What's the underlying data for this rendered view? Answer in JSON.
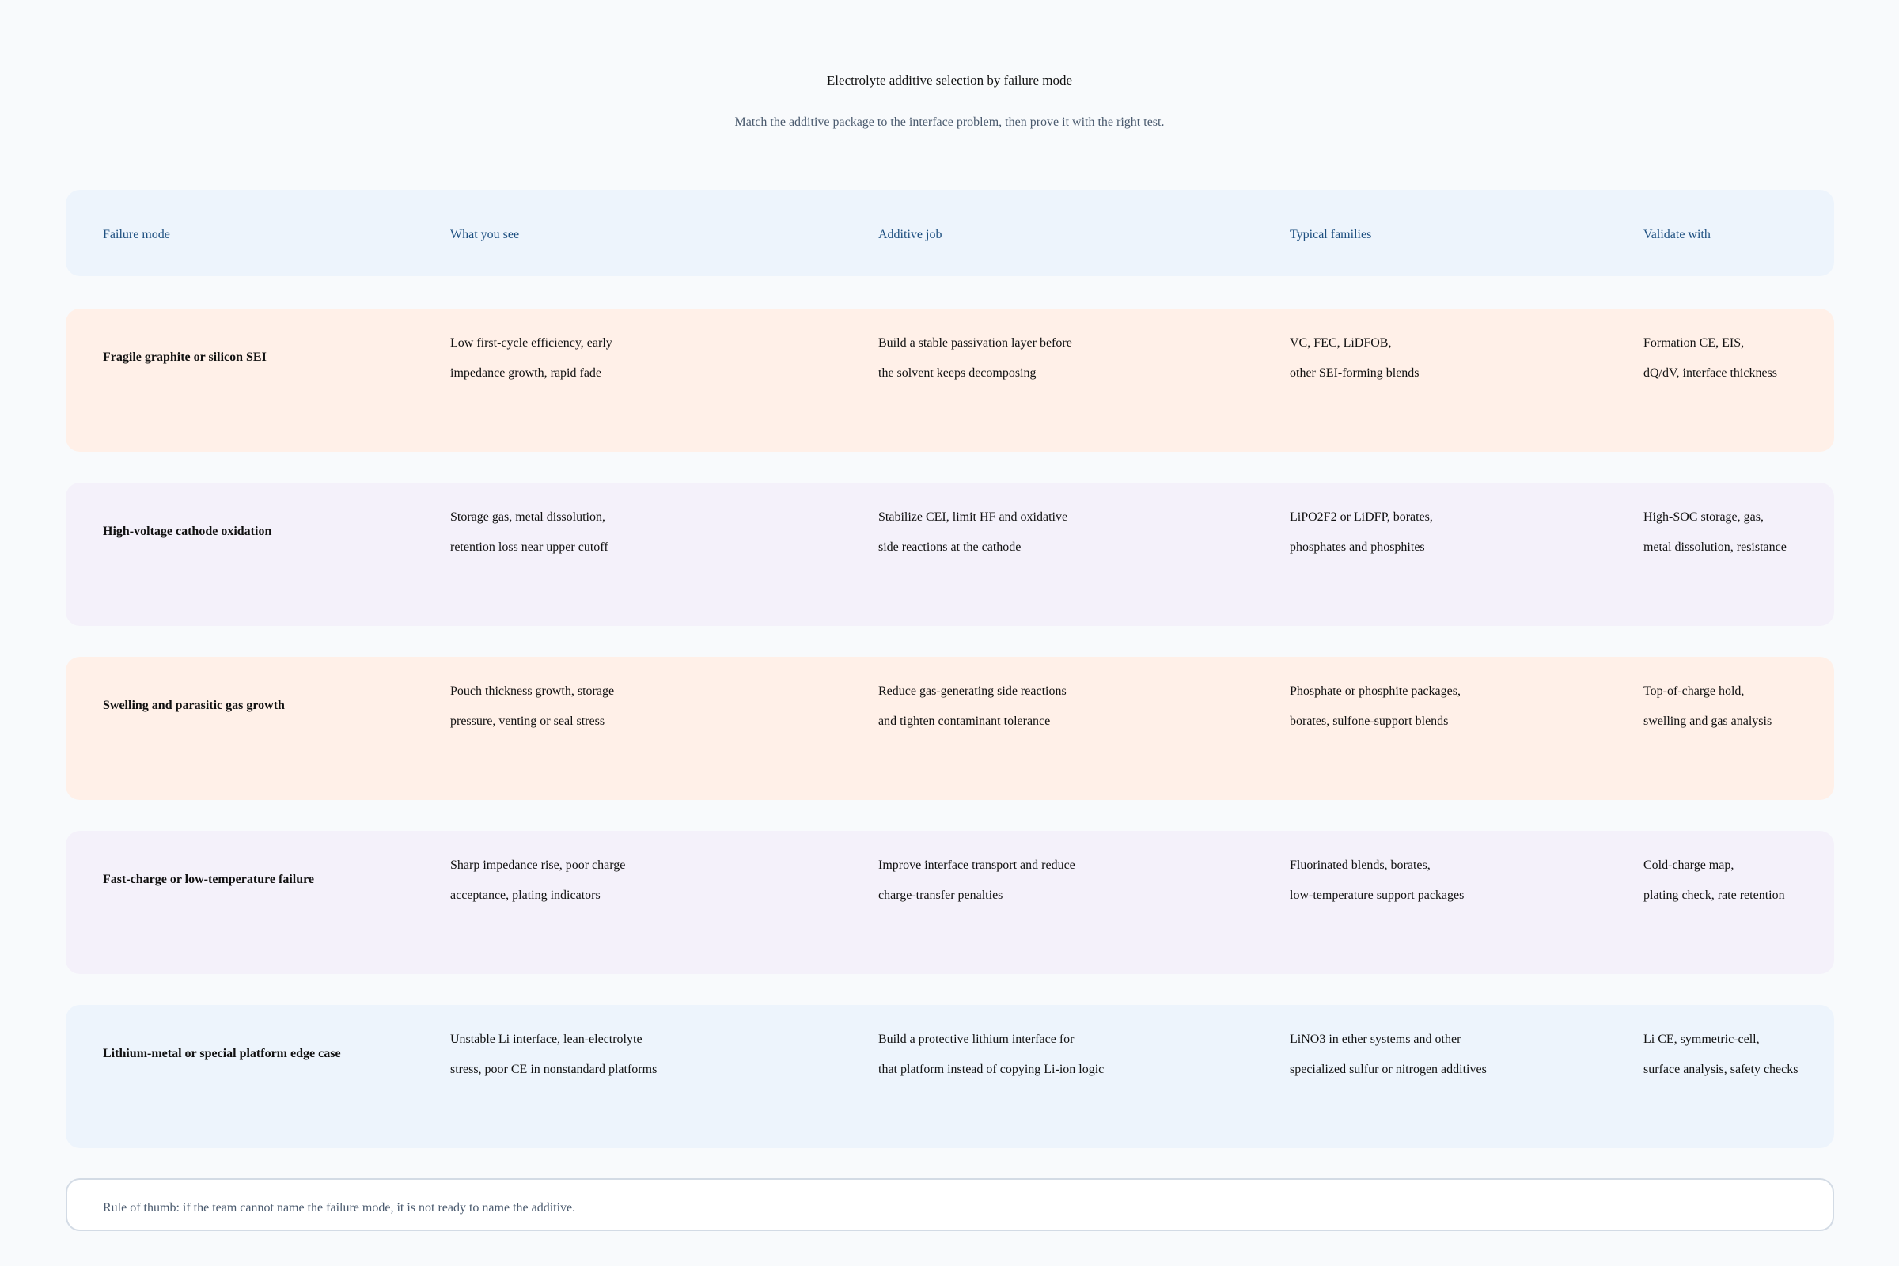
{
  "header": {
    "title": "Electrolyte additive selection by failure mode",
    "subtitle": "Match the additive package to the interface problem, then prove it with the right test."
  },
  "table": {
    "columns": [
      "Failure mode",
      "What you see",
      "Additive job",
      "Typical families",
      "Validate with"
    ],
    "rows": [
      [
        "Fragile graphite or silicon SEI",
        [
          "Low first-cycle efficiency, early",
          "impedance growth, rapid fade"
        ],
        [
          "Build a stable passivation layer before",
          "the solvent keeps decomposing"
        ],
        [
          "VC, FEC, LiDFOB,",
          "other SEI-forming blends"
        ],
        [
          "Formation CE, EIS,",
          "dQ/dV, interface thickness"
        ]
      ],
      [
        "High-voltage cathode oxidation",
        [
          "Storage gas, metal dissolution,",
          "retention loss near upper cutoff"
        ],
        [
          "Stabilize CEI, limit HF and oxidative",
          "side reactions at the cathode"
        ],
        [
          "LiPO2F2 or LiDFP, borates,",
          "phosphates and phosphites"
        ],
        [
          "High-SOC storage, gas,",
          "metal dissolution, resistance"
        ]
      ],
      [
        "Swelling and parasitic gas growth",
        [
          "Pouch thickness growth, storage",
          "pressure, venting or seal stress"
        ],
        [
          "Reduce gas-generating side reactions",
          "and tighten contaminant tolerance"
        ],
        [
          "Phosphate or phosphite packages,",
          "borates, sulfone-support blends"
        ],
        [
          "Top-of-charge hold,",
          "swelling and gas analysis"
        ]
      ],
      [
        "Fast-charge or low-temperature failure",
        [
          "Sharp impedance rise, poor charge",
          "acceptance, plating indicators"
        ],
        [
          "Improve interface transport and reduce",
          "charge-transfer penalties"
        ],
        [
          "Fluorinated blends, borates,",
          "low-temperature support packages"
        ],
        [
          "Cold-charge map,",
          "plating check, rate retention"
        ]
      ],
      [
        "Lithium-metal or special platform edge case",
        [
          "Unstable Li interface, lean-electrolyte",
          "stress, poor CE in nonstandard platforms"
        ],
        [
          "Build a protective lithium interface for",
          "that platform instead of copying Li-ion logic"
        ],
        [
          "LiNO3 in ether systems and other",
          "specialized sulfur or nitrogen additives"
        ],
        [
          "Li CE, symmetric-cell,",
          "surface analysis, safety checks"
        ]
      ]
    ]
  },
  "footer": {
    "note": "Rule of thumb: if the team cannot name the failure mode, it is not ready to name the additive."
  }
}
